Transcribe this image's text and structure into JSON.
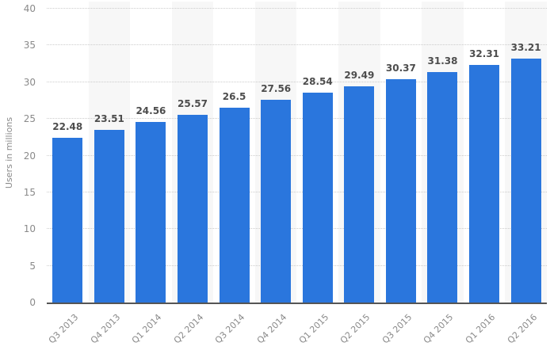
{
  "chart_data": {
    "type": "bar",
    "title": "",
    "xlabel": "",
    "ylabel": "Users in millions",
    "categories": [
      "Q3 2013",
      "Q4 2013",
      "Q1 2014",
      "Q2 2014",
      "Q3 2014",
      "Q4 2014",
      "Q1 2015",
      "Q2 2015",
      "Q3 2015",
      "Q4 2015",
      "Q1 2016",
      "Q2 2016"
    ],
    "values": [
      22.48,
      23.51,
      24.56,
      25.57,
      26.5,
      27.56,
      28.54,
      29.49,
      30.37,
      31.38,
      32.31,
      33.21
    ],
    "ylim": [
      0,
      40
    ],
    "yticks": [
      0,
      5,
      10,
      15,
      20,
      25,
      30,
      35,
      40
    ],
    "grid": "horizontal dotted",
    "legend": "none",
    "plot_bands": "alternating vertical column shading (even columns shaded)",
    "x_label_rotation": -45,
    "colors": {
      "bar": "#2a76dd",
      "stripe": "#f7f7f7",
      "gridline": "#cccccc",
      "axis_line": "#555555",
      "tick_label": "#8a8a8a",
      "value_label": "#4d4d4d",
      "bg": "#ffffff"
    }
  }
}
